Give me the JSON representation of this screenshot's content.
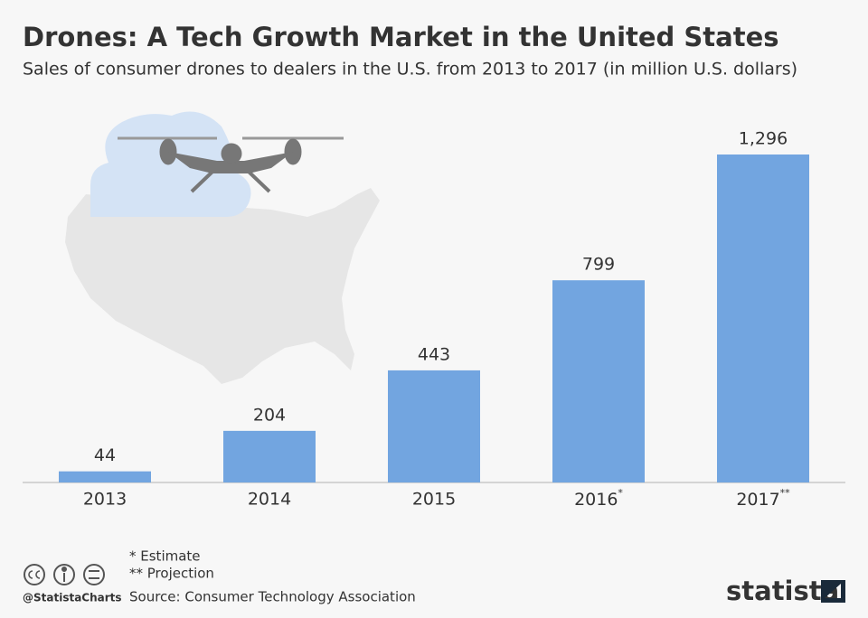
{
  "chart_data": {
    "type": "bar",
    "title": "Drones: A Tech Growth Market in the United States",
    "subtitle": "Sales of consumer drones to dealers in the U.S. from 2013 to 2017 (in million U.S. dollars)",
    "categories": [
      "2013",
      "2014",
      "2015",
      "2016*",
      "2017**"
    ],
    "values": [
      44,
      204,
      443,
      799,
      1296
    ],
    "value_labels": [
      "44",
      "204",
      "443",
      "799",
      "1,296"
    ],
    "color": "#72a5e0",
    "footnotes": [
      "* Estimate",
      "** Projection"
    ],
    "source": "Source: Consumer Technology Association",
    "credit": "@StatistaCharts",
    "brand": "statista"
  }
}
